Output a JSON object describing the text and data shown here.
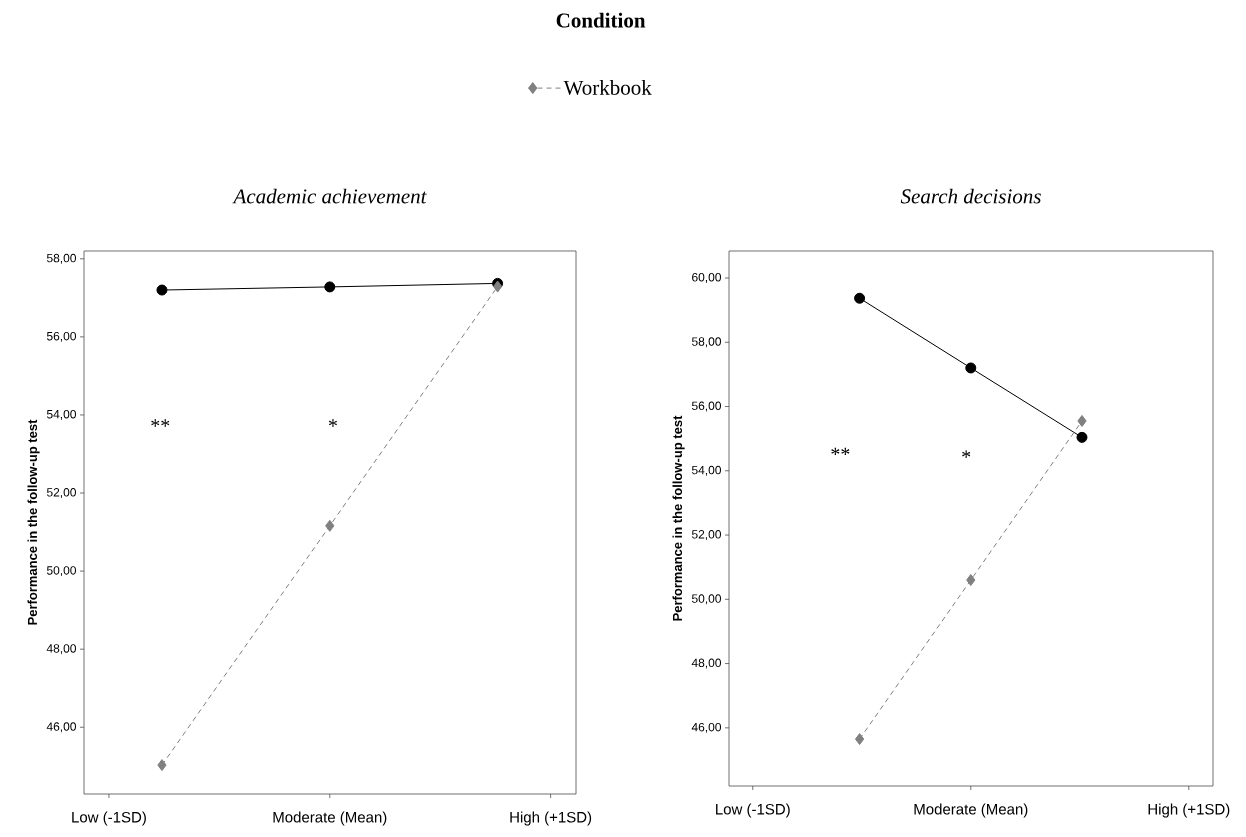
{
  "chart_data": [
    {
      "type": "line",
      "title": "Academic achievement",
      "ylabel": "Performance in the follow-up test",
      "legend_title": "Condition",
      "legend": "top",
      "xlim": [
        -1.113,
        1.115
      ],
      "ylim": [
        44.29,
        58.2
      ],
      "xticks": [
        {
          "value": -1,
          "label": "Low (-1SD)"
        },
        {
          "value": 0,
          "label": "Moderate (Mean)"
        },
        {
          "value": 1,
          "label": "High (+1SD)"
        }
      ],
      "yticks": [
        {
          "value": 46,
          "label": "46,00"
        },
        {
          "value": 48,
          "label": "48,00"
        },
        {
          "value": 50,
          "label": "50,00"
        },
        {
          "value": 52,
          "label": "52,00"
        },
        {
          "value": 54,
          "label": "54,00"
        },
        {
          "value": 56,
          "label": "56,00"
        },
        {
          "value": 58,
          "label": "58,00"
        }
      ],
      "series": [
        {
          "color": "#000000",
          "marker": "circle",
          "line_style": "solid",
          "x": [
            -0.76,
            0,
            0.76
          ],
          "values": [
            57.2,
            57.28,
            57.37
          ]
        },
        {
          "name": "Workbook",
          "color": "#808080",
          "marker": "diamond",
          "line_style": "dashed",
          "x": [
            -0.76,
            0,
            0.76
          ],
          "values": [
            45.03,
            51.16,
            57.29
          ]
        }
      ],
      "annotations": [
        "**",
        "*"
      ]
    },
    {
      "type": "line",
      "title": "Search decisions",
      "ylabel": "Performance in the follow-up test",
      "xlim": [
        -1.109,
        1.111
      ],
      "ylim": [
        44.19,
        60.84
      ],
      "xticks": [
        {
          "value": -1,
          "label": "Low (-1SD)"
        },
        {
          "value": 0,
          "label": "Moderate (Mean)"
        },
        {
          "value": 1,
          "label": "High (+1SD)"
        }
      ],
      "yticks": [
        {
          "value": 46,
          "label": "46,00"
        },
        {
          "value": 48,
          "label": "48,00"
        },
        {
          "value": 50,
          "label": "50,00"
        },
        {
          "value": 52,
          "label": "52,00"
        },
        {
          "value": 54,
          "label": "54,00"
        },
        {
          "value": 56,
          "label": "56,00"
        },
        {
          "value": 58,
          "label": "58,00"
        },
        {
          "value": 60,
          "label": "60,00"
        }
      ],
      "series": [
        {
          "color": "#000000",
          "marker": "circle",
          "line_style": "solid",
          "x": [
            -0.51,
            0,
            0.51
          ],
          "values": [
            59.37,
            57.2,
            55.04
          ]
        },
        {
          "color": "#808080",
          "marker": "diamond",
          "line_style": "dashed",
          "x": [
            -0.51,
            0,
            0.51
          ],
          "values": [
            45.65,
            50.6,
            55.55
          ]
        }
      ],
      "annotations": [
        "**",
        "*"
      ]
    }
  ]
}
